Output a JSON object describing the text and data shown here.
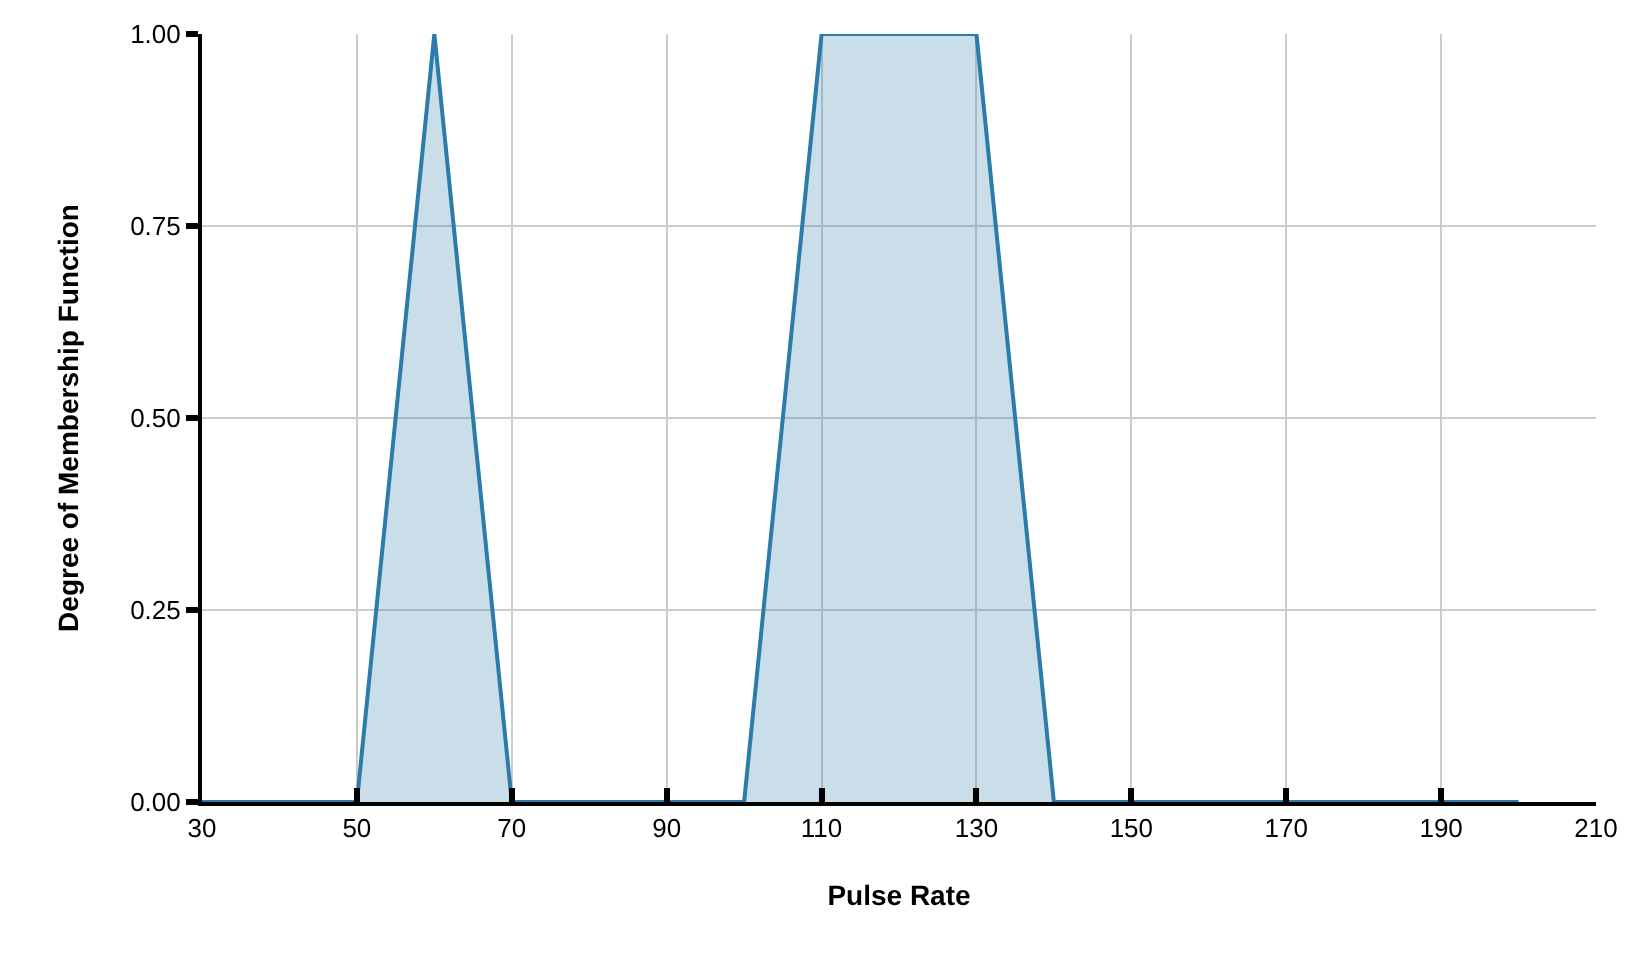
{
  "chart_data": {
    "type": "area",
    "xlabel": "Pulse Rate",
    "ylabel": "Degree of Membership Function",
    "series": [
      {
        "color": "#2b7bab",
        "x": [
          30,
          50,
          60,
          70,
          100,
          110,
          130,
          140,
          200
        ],
        "values": [
          0,
          0,
          1,
          0,
          0,
          1,
          1,
          0,
          0
        ]
      }
    ],
    "xlim": [
      30,
      210
    ],
    "xticks": [
      30,
      50,
      70,
      90,
      110,
      130,
      150,
      170,
      190,
      210
    ],
    "ylim": [
      0,
      1
    ],
    "yticks": [
      {
        "value": 0,
        "label": "0.00"
      },
      {
        "value": 0.25,
        "label": "0.25"
      },
      {
        "value": 0.5,
        "label": "0.50"
      },
      {
        "value": 0.75,
        "label": "0.75"
      },
      {
        "value": 1,
        "label": "1.00"
      }
    ],
    "grid": true
  }
}
